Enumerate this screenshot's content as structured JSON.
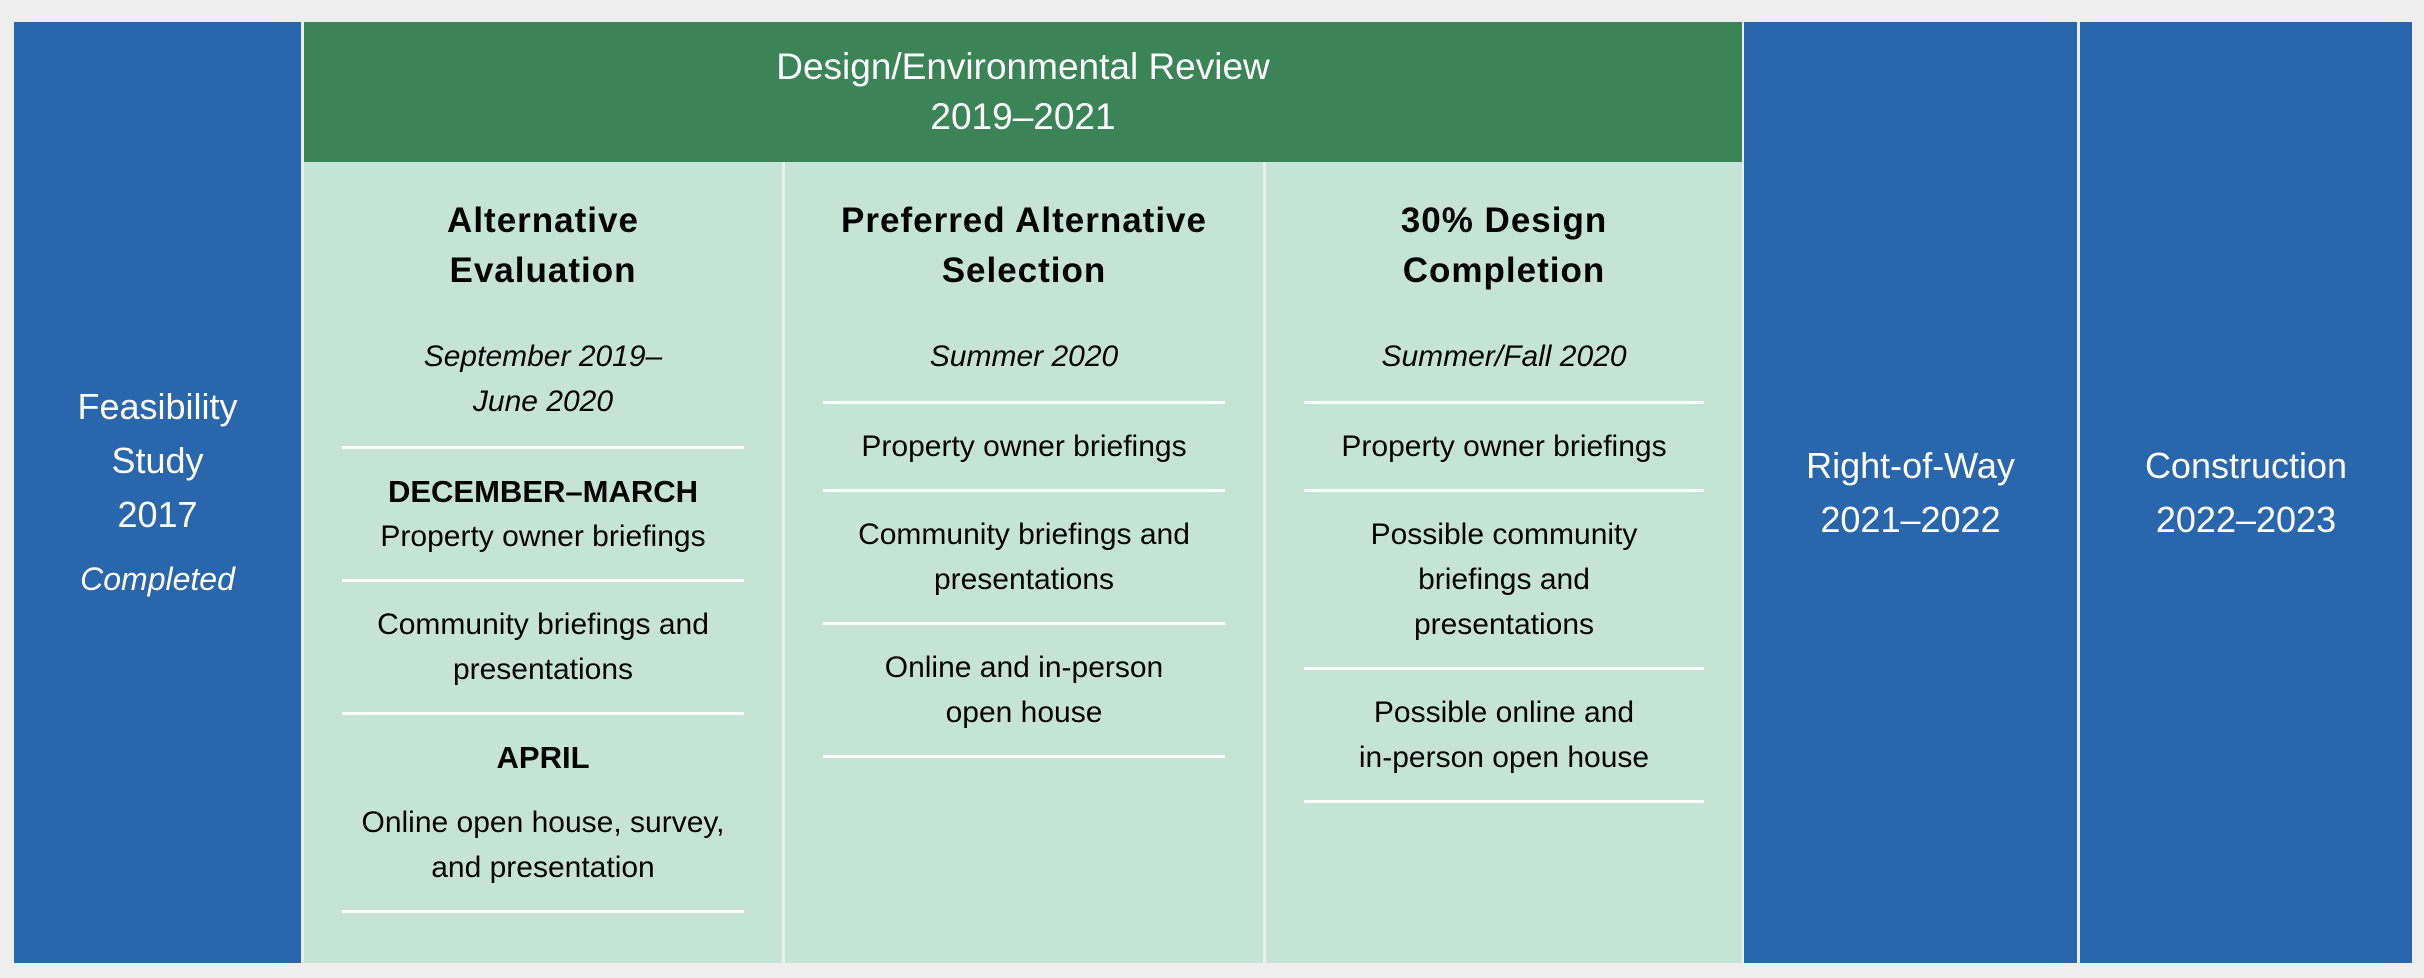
{
  "colors": {
    "phase_blue": "#2966ab",
    "design_green": "#3b8457",
    "subphase_bg": "#c6e3d8",
    "background": "#eeeeee"
  },
  "feasibility": {
    "line1": "Feasibility",
    "line2": "Study",
    "year": "2017",
    "status": "Completed"
  },
  "design": {
    "title": "Design/Environmental Review",
    "years": "2019–2021",
    "subphases": [
      {
        "title1": "Alternative",
        "title2": "Evaluation",
        "date1": "September 2019–",
        "date2": "June 2020",
        "groups": [
          {
            "label": "DECEMBER–MARCH",
            "items": [
              [
                "Property owner briefings"
              ],
              [
                "Community briefings and",
                "presentations"
              ]
            ]
          },
          {
            "label": "APRIL",
            "items": [
              [
                "Online open house, survey,",
                "and presentation"
              ]
            ]
          }
        ]
      },
      {
        "title1": "Preferred Alternative",
        "title2": "Selection",
        "date1": "Summer 2020",
        "items": [
          [
            "Property owner briefings"
          ],
          [
            "Community briefings and",
            "presentations"
          ],
          [
            "Online and in-person",
            "open house"
          ]
        ]
      },
      {
        "title1": "30% Design",
        "title2": "Completion",
        "date1": "Summer/Fall 2020",
        "items": [
          [
            "Property owner briefings"
          ],
          [
            "Possible community",
            "briefings and",
            "presentations"
          ],
          [
            "Possible online and",
            "in-person open house"
          ]
        ]
      }
    ]
  },
  "right_of_way": {
    "line1": "Right-of-Way",
    "line2": "2021–2022"
  },
  "construction": {
    "line1": "Construction",
    "line2": "2022–2023"
  }
}
